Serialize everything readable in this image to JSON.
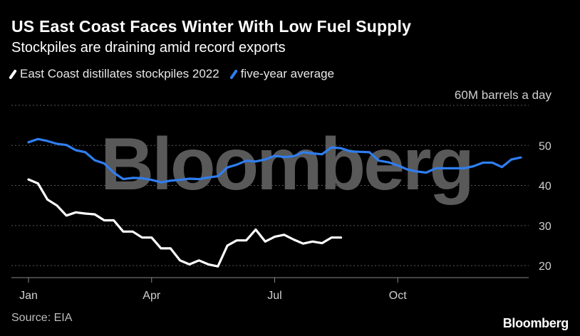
{
  "header": {
    "title": "US East Coast Faces Winter With Low Fuel Supply",
    "subtitle": "Stockpiles are draining amid record exports"
  },
  "source": "Source: EIA",
  "brand": "Bloomberg",
  "watermark": "Bloomberg",
  "chart_data": {
    "type": "line",
    "ylabel": "60M barrels a day",
    "ylim": [
      17,
      60
    ],
    "yticks": [
      20,
      30,
      40,
      50
    ],
    "xlim": [
      1,
      53
    ],
    "xticks": [
      {
        "label": "Jan",
        "x": 1
      },
      {
        "label": "Apr",
        "x": 14
      },
      {
        "label": "Jul",
        "x": 27
      },
      {
        "label": "Oct",
        "x": 40
      }
    ],
    "grid": true,
    "legend": "top-left",
    "series": [
      {
        "name": "East Coast distillates stockpiles 2022",
        "color": "#ffffff",
        "x": [
          1,
          2,
          3,
          4,
          5,
          6,
          7,
          8,
          9,
          10,
          11,
          12,
          13,
          14,
          15,
          16,
          17,
          18,
          19,
          20,
          21,
          22,
          23,
          24,
          25,
          26,
          27,
          28,
          29,
          30,
          31,
          32,
          33,
          34
        ],
        "values": [
          41.5,
          40.5,
          36.5,
          35.0,
          32.5,
          33.3,
          33.0,
          32.8,
          31.3,
          31.3,
          28.5,
          28.5,
          27.0,
          27.0,
          24.3,
          24.3,
          21.3,
          20.3,
          21.3,
          20.3,
          19.8,
          25.0,
          26.3,
          26.3,
          29.0,
          26.0,
          27.2,
          27.7,
          26.5,
          25.5,
          26.0,
          25.6,
          27.0,
          27.0
        ]
      },
      {
        "name": "five-year average",
        "color": "#2f7ef0",
        "x": [
          1,
          2,
          3,
          4,
          5,
          6,
          7,
          8,
          9,
          10,
          11,
          12,
          13,
          14,
          15,
          16,
          17,
          18,
          19,
          20,
          21,
          22,
          23,
          24,
          25,
          26,
          27,
          28,
          29,
          30,
          31,
          32,
          33,
          34,
          35,
          36,
          37,
          38,
          39,
          40,
          41,
          42,
          43,
          44,
          45,
          46,
          47,
          48,
          49,
          50,
          51,
          52,
          53
        ],
        "values": [
          50.8,
          51.6,
          51.1,
          50.4,
          50.1,
          48.8,
          48.3,
          46.3,
          45.5,
          43.2,
          41.6,
          41.9,
          41.8,
          41.4,
          40.8,
          41.2,
          41.4,
          41.7,
          41.6,
          42.0,
          42.3,
          44.5,
          45.2,
          46.2,
          46.0,
          46.5,
          47.4,
          47.1,
          47.3,
          48.3,
          48.0,
          47.8,
          49.5,
          49.3,
          48.5,
          48.4,
          48.3,
          46.2,
          45.8,
          45.0,
          44.0,
          43.5,
          43.2,
          44.3,
          44.3,
          44.3,
          44.3,
          44.8,
          45.7,
          45.7,
          44.6,
          46.5,
          47.0
        ]
      }
    ]
  }
}
